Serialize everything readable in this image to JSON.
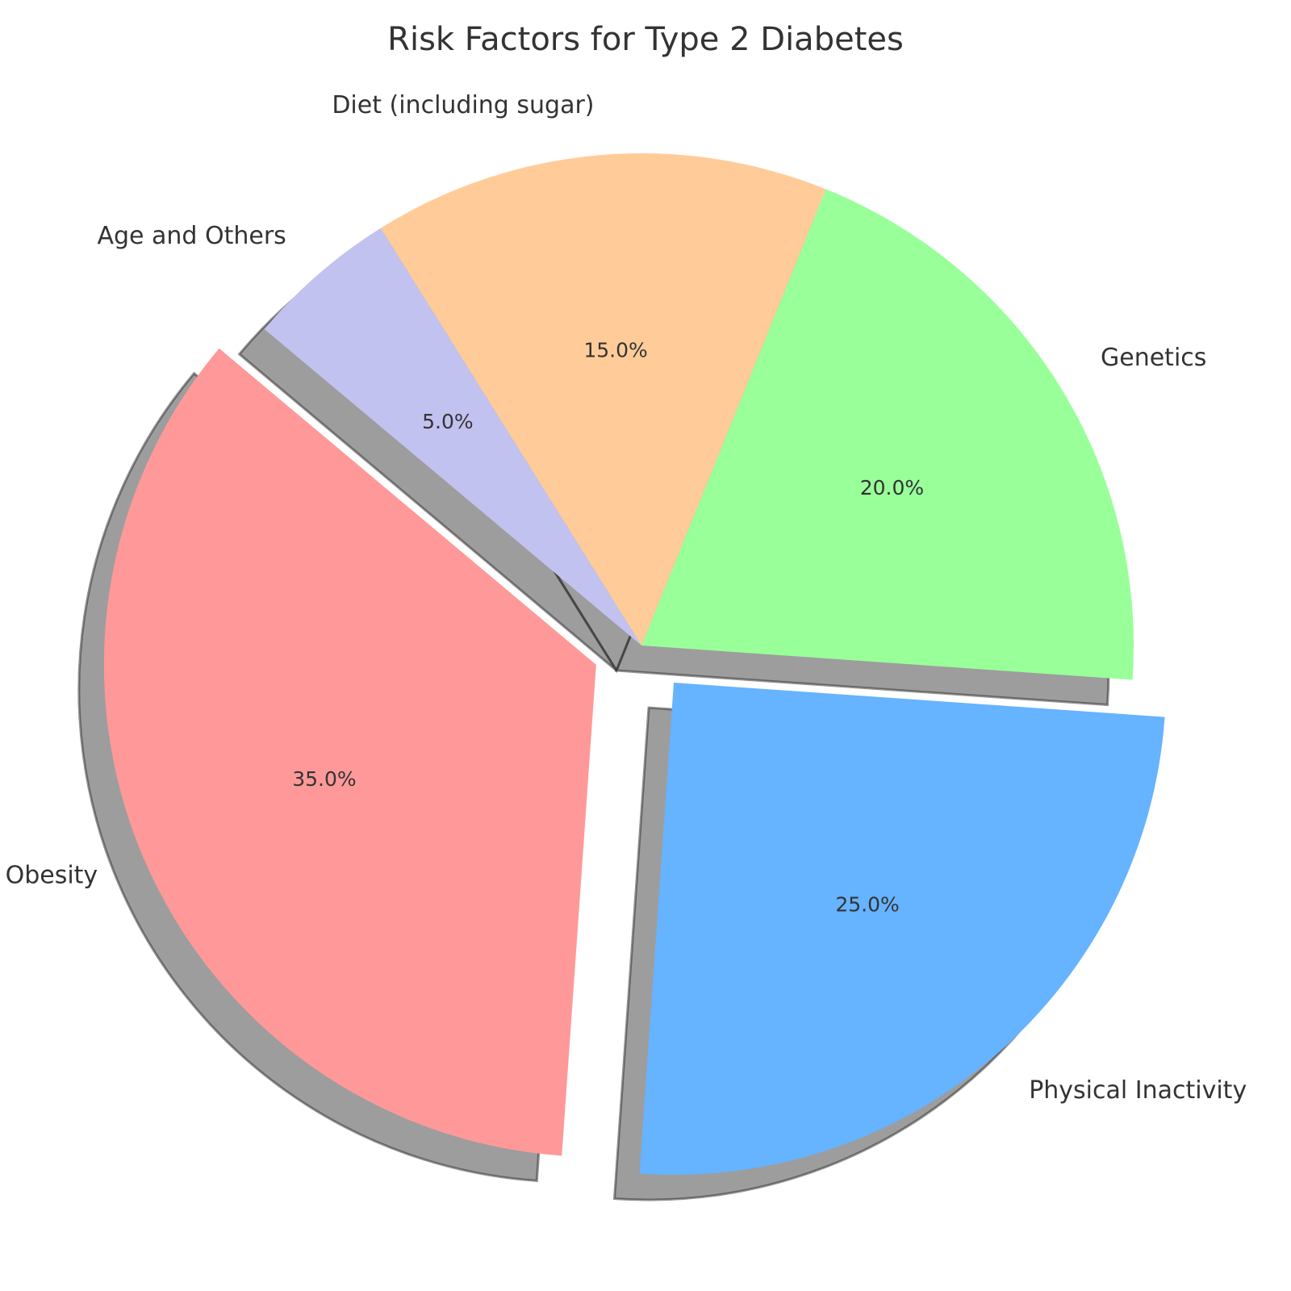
{
  "chart_data": {
    "type": "pie",
    "title": "Risk Factors for Type 2 Diabetes",
    "slices": [
      {
        "label": "Obesity",
        "value": 35,
        "pct_label": "35.0%",
        "color": "#ff9999",
        "exploded": true
      },
      {
        "label": "Physical Inactivity",
        "value": 25,
        "pct_label": "25.0%",
        "color": "#66b3ff",
        "exploded": true
      },
      {
        "label": "Genetics",
        "value": 20,
        "pct_label": "20.0%",
        "color": "#99ff99",
        "exploded": false
      },
      {
        "label": "Diet (including sugar)",
        "value": 15,
        "pct_label": "15.0%",
        "color": "#ffcc99",
        "exploded": false
      },
      {
        "label": "Age and Others",
        "value": 5,
        "pct_label": "5.0%",
        "color": "#c2c2f0",
        "exploded": false
      }
    ],
    "start_angle_deg": 140,
    "direction": "counterclockwise",
    "shadow": true,
    "legend": "none"
  }
}
